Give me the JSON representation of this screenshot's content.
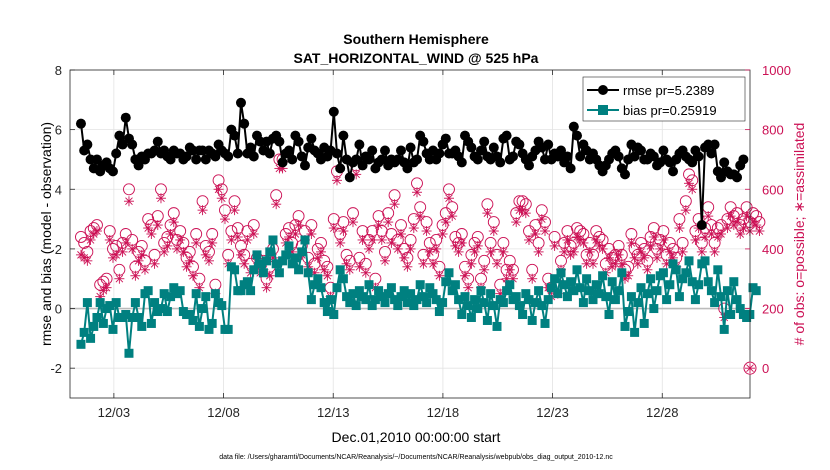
{
  "chart_data": {
    "type": "line",
    "title": "Southern Hemisphere",
    "subtitle": "SAT_HORIZONTAL_WIND @ 525 hPa",
    "xlabel": "Dec.01,2010 00:00:00 start",
    "ylabel": "rmse and bias (model - observation)",
    "y2label": "# of obs: o=possible; ∗=assimilated",
    "footnote": "data file: /Users/gharamti/Documents/NCAR/Reanalysis/~/Documents/NCAR/Reanalysis/webpub/obs_diag_output_2010-12.nc",
    "xlim": [
      0,
      31
    ],
    "ylim": [
      -3,
      8
    ],
    "y2lim": [
      -100,
      1000
    ],
    "xticks": [
      2,
      7,
      12,
      17,
      22,
      27
    ],
    "xtick_labels": [
      "12/03",
      "12/08",
      "12/13",
      "12/18",
      "12/23",
      "12/28"
    ],
    "yticks": [
      -2,
      0,
      2,
      4,
      6,
      8
    ],
    "ytick_labels": [
      "-2",
      "0",
      "2",
      "4",
      "6",
      "8"
    ],
    "y2ticks": [
      0,
      200,
      400,
      600,
      800,
      1000
    ],
    "y2tick_labels": [
      "0",
      "200",
      "400",
      "600",
      "800",
      "1000"
    ],
    "grid": true,
    "legend_position": "top-right",
    "colors": {
      "rmse": "#000000",
      "bias": "#008080",
      "obs": "#cc1155",
      "zero": "#bbbbbb"
    },
    "series": [
      {
        "name": "rmse pr=5.2389",
        "marker": "circle",
        "values": [
          6.2,
          5.3,
          5.5,
          5.0,
          4.7,
          5.0,
          4.6,
          4.8,
          4.9,
          4.7,
          4.6,
          5.2,
          5.8,
          5.5,
          6.4,
          5.7,
          5.5,
          5.0,
          4.8,
          5.1,
          5.0,
          5.2,
          5.2,
          5.3,
          5.6,
          5.2,
          5.3,
          5.1,
          5.0,
          5.3,
          5.2,
          5.2,
          5.0,
          5.1,
          5.4,
          5.3,
          5.0,
          5.3,
          5.3,
          5.0,
          5.3,
          5.2,
          5.1,
          5.5,
          5.3,
          5.2,
          5.1,
          6.0,
          5.8,
          5.2,
          6.9,
          6.2,
          5.2,
          5.4,
          5.1,
          5.8,
          5.6,
          5.3,
          5.6,
          5.2,
          5.7,
          5.8,
          5.6,
          4.9,
          5.2,
          5.3,
          5.0,
          5.8,
          5.6,
          5.1,
          4.8,
          5.4,
          5.7,
          5.3,
          5.2,
          5.0,
          5.4,
          5.1,
          5.3,
          6.6,
          5.2,
          4.7,
          5.8,
          5.0,
          4.4,
          4.9,
          5.0,
          5.5,
          4.8,
          5.1,
          5.0,
          5.3,
          4.7,
          4.9,
          5.0,
          5.3,
          4.8,
          5.0,
          4.9,
          5.0,
          5.3,
          4.9,
          4.7,
          5.4,
          4.9,
          5.0,
          5.8,
          5.6,
          5.2,
          5.0,
          5.3,
          5.0,
          5.2,
          5.5,
          5.7,
          5.2,
          5.2,
          5.3,
          5.1,
          4.9,
          5.8,
          5.6,
          5.4,
          5.1,
          5.0,
          5.3,
          5.6,
          5.1,
          5.0,
          5.4,
          5.1,
          4.9,
          5.7,
          5.8,
          5.0,
          5.1,
          5.6,
          5.5,
          5.2,
          5.0,
          4.8,
          5.1,
          5.3,
          5.6,
          5.4,
          5.0,
          5.5,
          5.0,
          5.2,
          5.1,
          5.3,
          4.9,
          5.1,
          4.7,
          6.1,
          5.8,
          5.1,
          5.5,
          5.3,
          5.0,
          5.2,
          5.0,
          4.8,
          4.6,
          4.8,
          5.0,
          5.2,
          5.3,
          5.1,
          4.7,
          4.5,
          5.0,
          5.5,
          5.1,
          5.4,
          5.3,
          5.0,
          5.0,
          5.2,
          5.1,
          4.8,
          4.9,
          5.3,
          5.0,
          4.9,
          4.6,
          5.0,
          5.2,
          5.3,
          5.1,
          5.0,
          4.9,
          5.3,
          5.1,
          2.8,
          5.4,
          5.5,
          5.2,
          5.5,
          4.6,
          4.4,
          4.9,
          4.6,
          4.5,
          4.5,
          4.4,
          4.8,
          5.0
        ]
      },
      {
        "name": "bias pr=0.25919",
        "marker": "square",
        "values": [
          -1.2,
          -0.8,
          0.2,
          -1.0,
          -0.6,
          -0.3,
          0.2,
          -0.5,
          0.0,
          0.1,
          -0.7,
          0.2,
          -0.3,
          -0.3,
          -0.2,
          -1.5,
          -0.3,
          0.2,
          -0.3,
          -0.6,
          0.5,
          0.6,
          -0.5,
          0.2,
          -0.1,
          0.0,
          0.5,
          -0.1,
          0.4,
          0.7,
          0.5,
          0.6,
          -0.1,
          -0.2,
          -0.2,
          -0.4,
          0.5,
          -0.6,
          0.0,
          0.4,
          -0.7,
          -0.5,
          0.5,
          0.2,
          0.1,
          -0.7,
          -0.7,
          1.4,
          1.3,
          0.6,
          0.6,
          0.8,
          0.9,
          0.6,
          1.3,
          1.8,
          1.5,
          1.2,
          1.6,
          1.9,
          2.3,
          1.5,
          1.2,
          1.6,
          1.8,
          2.1,
          1.5,
          1.7,
          1.3,
          1.9,
          2.3,
          1.2,
          0.3,
          0.8,
          1.0,
          0.7,
          0.2,
          -0.1,
          0.3,
          -0.2,
          0.7,
          1.3,
          1.0,
          0.4,
          0.2,
          0.5,
          0.1,
          0.6,
          0.4,
          0.3,
          0.8,
          0.1,
          0.3,
          0.6,
          0.4,
          0.2,
          0.5,
          0.7,
          0.3,
          0.1,
          0.4,
          0.6,
          0.2,
          0.5,
          0.1,
          0.3,
          0.8,
          0.4,
          0.2,
          0.7,
          0.5,
          0.3,
          -0.1,
          0.2,
          0.9,
          1.2,
          0.6,
          0.8,
          0.3,
          -0.2,
          0.4,
          0.1,
          -0.3,
          0.3,
          0.0,
          0.6,
          0.2,
          -0.4,
          0.5,
          0.1,
          -0.6,
          0.3,
          0.2,
          0.6,
          0.8,
          0.3,
          0.4,
          0.1,
          -0.2,
          0.5,
          0.3,
          -0.4,
          0.2,
          0.6,
          0.1,
          -0.5,
          0.3,
          0.7,
          1.0,
          0.5,
          1.2,
          0.8,
          0.4,
          0.9,
          0.6,
          1.3,
          0.7,
          0.2,
          1.0,
          0.6,
          0.3,
          0.8,
          0.5,
          1.1,
          0.4,
          -0.2,
          0.9,
          0.3,
          0.6,
          1.2,
          -0.6,
          -0.1,
          0.4,
          -0.8,
          0.2,
          0.7,
          -0.5,
          0.5,
          1.0,
          0.0,
          0.6,
          1.1,
          1.2,
          0.3,
          0.8,
          1.5,
          1.3,
          0.4,
          1.0,
          1.2,
          1.6,
          0.9,
          0.3,
          0.8,
          1.5,
          1.6,
          0.9,
          0.6,
          0.2,
          1.3,
          0.4,
          -0.7,
          0.6,
          -0.2,
          0.9,
          0.3,
          0.0,
          -0.2,
          -0.3,
          -0.2,
          0.7,
          0.6
        ]
      },
      {
        "name": "obs possible",
        "marker": "circle-open",
        "axis": "right",
        "values": [
          440,
          420,
          390,
          460,
          470,
          480,
          280,
          290,
          300,
          460,
          400,
          410,
          330,
          420,
          450,
          600,
          430,
          340,
          390,
          410,
          360,
          500,
          480,
          380,
          510,
          600,
          420,
          440,
          480,
          520,
          430,
          460,
          420,
          370,
          390,
          340,
          450,
          300,
          560,
          410,
          390,
          450,
          280,
          630,
          600,
          530,
          380,
          460,
          560,
          470,
          410,
          380,
          460,
          350,
          480,
          370,
          350,
          360,
          300,
          340,
          400,
          580,
          700,
          700,
          450,
          470,
          420,
          480,
          510,
          410,
          460,
          370,
          480,
          350,
          400,
          420,
          360,
          340,
          270,
          500,
          660,
          450,
          490,
          380,
          360,
          520,
          680,
          370,
          460,
          350,
          430,
          460,
          300,
          510,
          460,
          390,
          520,
          450,
          580,
          430,
          480,
          400,
          370,
          430,
          500,
          620,
          540,
          380,
          490,
          420,
          380,
          430,
          340,
          480,
          520,
          600,
          540,
          440,
          420,
          450,
          340,
          300,
          380,
          420,
          440,
          300,
          360,
          550,
          420,
          490,
          380,
          280,
          420,
          330,
          360,
          330,
          520,
          560,
          560,
          550,
          460,
          330,
          480,
          420,
          530,
          490,
          300,
          270,
          440,
          280,
          360,
          420,
          460,
          410,
          420,
          470,
          460,
          450,
          380,
          420,
          380,
          460,
          440,
          430,
          350,
          400,
          370,
          380,
          410,
          380,
          330,
          340,
          450,
          400,
          380,
          420,
          400,
          360,
          440,
          470,
          400,
          430,
          460,
          380,
          420,
          400,
          370,
          500,
          420,
          560,
          650,
          630,
          460,
          500,
          420,
          470,
          540,
          480,
          420,
          470,
          480,
          200,
          500,
          540,
          510,
          520,
          480,
          500,
          540,
          490,
          520,
          510,
          490
        ]
      },
      {
        "name": "obs assimilated",
        "marker": "star",
        "axis": "right",
        "values": [
          380,
          370,
          360,
          430,
          450,
          460,
          240,
          260,
          270,
          430,
          370,
          380,
          300,
          390,
          420,
          560,
          400,
          310,
          360,
          380,
          330,
          470,
          450,
          350,
          480,
          570,
          390,
          410,
          450,
          490,
          400,
          430,
          390,
          340,
          360,
          310,
          420,
          270,
          530,
          380,
          360,
          420,
          250,
          600,
          570,
          500,
          350,
          430,
          530,
          440,
          380,
          350,
          430,
          320,
          450,
          340,
          320,
          330,
          270,
          310,
          370,
          550,
          670,
          670,
          420,
          440,
          390,
          450,
          480,
          380,
          430,
          340,
          450,
          320,
          370,
          390,
          330,
          310,
          240,
          470,
          630,
          420,
          460,
          350,
          330,
          490,
          650,
          340,
          430,
          320,
          400,
          430,
          270,
          480,
          430,
          360,
          490,
          420,
          550,
          400,
          450,
          370,
          340,
          400,
          470,
          590,
          510,
          350,
          460,
          390,
          350,
          400,
          310,
          450,
          490,
          570,
          510,
          410,
          390,
          420,
          310,
          270,
          350,
          390,
          410,
          270,
          330,
          520,
          390,
          460,
          350,
          250,
          390,
          300,
          330,
          300,
          490,
          530,
          530,
          520,
          430,
          300,
          450,
          390,
          500,
          460,
          270,
          240,
          410,
          250,
          330,
          390,
          430,
          380,
          390,
          440,
          430,
          420,
          350,
          390,
          350,
          430,
          410,
          400,
          320,
          370,
          340,
          350,
          380,
          350,
          300,
          310,
          420,
          370,
          350,
          390,
          370,
          330,
          410,
          440,
          370,
          400,
          430,
          350,
          390,
          370,
          340,
          470,
          390,
          530,
          620,
          600,
          430,
          470,
          390,
          440,
          510,
          450,
          390,
          440,
          450,
          170,
          470,
          510,
          480,
          490,
          450,
          470,
          510,
          460,
          490,
          480,
          460
        ]
      }
    ],
    "extra_marker": {
      "label": "0",
      "y2": 0,
      "marker": "circle-star"
    }
  }
}
